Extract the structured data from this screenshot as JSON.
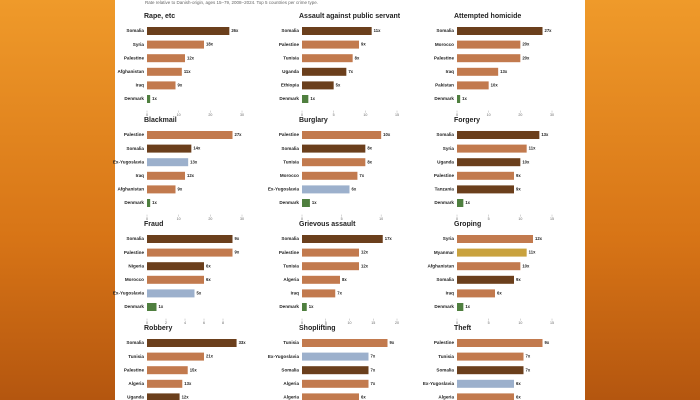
{
  "header": {
    "subtitle": "Rate relative to Danish-origin, ages 15–79, 2008–2024. Top 5 countries per crime type."
  },
  "chart_data": [
    {
      "type": "bar",
      "title": "Rape, etc",
      "categories": [
        "Somalia",
        "Syria",
        "Palestine",
        "Afghanistan",
        "Iraq",
        "Denmark"
      ],
      "values": [
        26,
        18,
        12,
        11,
        9,
        1
      ],
      "value_labels": [
        "26x",
        "18x",
        "12x",
        "11x",
        "9x",
        "1x"
      ],
      "colors": [
        "#6b3f1c",
        "#c27a4e",
        "#c27a4e",
        "#c27a4e",
        "#c27a4e",
        "#4f7f3f"
      ],
      "xlim": [
        0,
        30
      ],
      "xticks": [
        0,
        10,
        20,
        30
      ]
    },
    {
      "type": "bar",
      "title": "Assault against public servant",
      "categories": [
        "Somalia",
        "Palestine",
        "Tunisia",
        "Uganda",
        "Ethiopia",
        "Denmark"
      ],
      "values": [
        11,
        9,
        8,
        7,
        5,
        1
      ],
      "value_labels": [
        "11x",
        "9x",
        "8x",
        "7x",
        "5x",
        "1x"
      ],
      "colors": [
        "#6b3f1c",
        "#c27a4e",
        "#c27a4e",
        "#6b3f1c",
        "#6b3f1c",
        "#4f7f3f"
      ],
      "xlim": [
        0,
        15
      ],
      "xticks": [
        0,
        5,
        10,
        15
      ]
    },
    {
      "type": "bar",
      "title": "Attempted homicide",
      "categories": [
        "Somalia",
        "Morocco",
        "Palestine",
        "Iraq",
        "Pakistan",
        "Denmark"
      ],
      "values": [
        27,
        20,
        20,
        13,
        10,
        1
      ],
      "value_labels": [
        "27x",
        "20x",
        "20x",
        "13x",
        "10x",
        "1x"
      ],
      "colors": [
        "#6b3f1c",
        "#c27a4e",
        "#c27a4e",
        "#c27a4e",
        "#c27a4e",
        "#4f7f3f"
      ],
      "xlim": [
        0,
        30
      ],
      "xticks": [
        0,
        10,
        20,
        30
      ]
    },
    {
      "type": "bar",
      "title": "Blackmail",
      "categories": [
        "Palestine",
        "Somalia",
        "Ex-Yugoslavia",
        "Iraq",
        "Afghanistan",
        "Denmark"
      ],
      "values": [
        27,
        14,
        13,
        12,
        9,
        1
      ],
      "value_labels": [
        "27x",
        "14x",
        "13x",
        "12x",
        "9x",
        "1x"
      ],
      "colors": [
        "#c27a4e",
        "#6b3f1c",
        "#9cb0cc",
        "#c27a4e",
        "#c27a4e",
        "#4f7f3f"
      ],
      "xlim": [
        0,
        30
      ],
      "xticks": [
        0,
        10,
        20,
        30
      ]
    },
    {
      "type": "bar",
      "title": "Burglary",
      "categories": [
        "Palestine",
        "Somalia",
        "Tunisia",
        "Morocco",
        "Ex-Yugoslavia",
        "Denmark"
      ],
      "values": [
        10,
        8,
        8,
        7,
        6,
        1
      ],
      "value_labels": [
        "10x",
        "8x",
        "8x",
        "7x",
        "6x",
        "1x"
      ],
      "colors": [
        "#c27a4e",
        "#6b3f1c",
        "#c27a4e",
        "#c27a4e",
        "#9cb0cc",
        "#4f7f3f"
      ],
      "xlim": [
        0,
        12
      ],
      "xticks": [
        0,
        5,
        10
      ]
    },
    {
      "type": "bar",
      "title": "Forgery",
      "categories": [
        "Somalia",
        "Syria",
        "Uganda",
        "Palestine",
        "Tanzania",
        "Denmark"
      ],
      "values": [
        13,
        11,
        10,
        9,
        9,
        1
      ],
      "value_labels": [
        "13x",
        "11x",
        "10x",
        "9x",
        "9x",
        "1x"
      ],
      "colors": [
        "#6b3f1c",
        "#c27a4e",
        "#6b3f1c",
        "#c27a4e",
        "#6b3f1c",
        "#4f7f3f"
      ],
      "xlim": [
        0,
        15
      ],
      "xticks": [
        0,
        5,
        10,
        15
      ]
    },
    {
      "type": "bar",
      "title": "Fraud",
      "categories": [
        "Somalia",
        "Palestine",
        "Nigeria",
        "Morocco",
        "Ex-Yugoslavia",
        "Denmark"
      ],
      "values": [
        9,
        9,
        6,
        6,
        5,
        1
      ],
      "value_labels": [
        "9x",
        "9x",
        "6x",
        "6x",
        "5x",
        "1x"
      ],
      "colors": [
        "#6b3f1c",
        "#c27a4e",
        "#6b3f1c",
        "#c27a4e",
        "#9cb0cc",
        "#4f7f3f"
      ],
      "xlim": [
        0,
        10
      ],
      "xticks": [
        0,
        2,
        4,
        6,
        8
      ]
    },
    {
      "type": "bar",
      "title": "Grievous assault",
      "categories": [
        "Somalia",
        "Palestine",
        "Tunisia",
        "Algeria",
        "Iraq",
        "Denmark"
      ],
      "values": [
        17,
        12,
        12,
        8,
        7,
        1
      ],
      "value_labels": [
        "17x",
        "12x",
        "12x",
        "8x",
        "7x",
        "1x"
      ],
      "colors": [
        "#6b3f1c",
        "#c27a4e",
        "#c27a4e",
        "#c27a4e",
        "#c27a4e",
        "#4f7f3f"
      ],
      "xlim": [
        0,
        20
      ],
      "xticks": [
        0,
        5,
        10,
        15,
        20
      ]
    },
    {
      "type": "bar",
      "title": "Groping",
      "categories": [
        "Syria",
        "Myanmar",
        "Afghanistan",
        "Somalia",
        "Iraq",
        "Denmark"
      ],
      "values": [
        12,
        11,
        10,
        9,
        6,
        1
      ],
      "value_labels": [
        "12x",
        "11x",
        "10x",
        "9x",
        "6x",
        "1x"
      ],
      "colors": [
        "#c27a4e",
        "#c9a23e",
        "#c27a4e",
        "#6b3f1c",
        "#c27a4e",
        "#4f7f3f"
      ],
      "xlim": [
        0,
        15
      ],
      "xticks": [
        0,
        5,
        10,
        15
      ]
    },
    {
      "type": "bar",
      "title": "Robbery",
      "categories": [
        "Somalia",
        "Tunisia",
        "Palestine",
        "Algeria",
        "Uganda"
      ],
      "values": [
        33,
        21,
        15,
        13,
        12
      ],
      "value_labels": [
        "33x",
        "21x",
        "15x",
        "13x",
        "12x"
      ],
      "colors": [
        "#6b3f1c",
        "#c27a4e",
        "#c27a4e",
        "#c27a4e",
        "#6b3f1c"
      ],
      "xlim": [
        0,
        35
      ]
    },
    {
      "type": "bar",
      "title": "Shoplifting",
      "categories": [
        "Tunisia",
        "Ex-Yugoslavia",
        "Somalia",
        "Algeria",
        "Algeria"
      ],
      "values": [
        9,
        7,
        7,
        7,
        6
      ],
      "value_labels": [
        "9x",
        "7x",
        "7x",
        "7x",
        "6x"
      ],
      "colors": [
        "#c27a4e",
        "#9cb0cc",
        "#6b3f1c",
        "#c27a4e",
        "#c27a4e"
      ],
      "xlim": [
        0,
        10
      ]
    },
    {
      "type": "bar",
      "title": "Theft",
      "categories": [
        "Palestine",
        "Tunisia",
        "Somalia",
        "Ex-Yugoslavia",
        "Algeria"
      ],
      "values": [
        9,
        7,
        7,
        6,
        6
      ],
      "value_labels": [
        "9x",
        "7x",
        "7x",
        "6x",
        "6x"
      ],
      "colors": [
        "#c27a4e",
        "#c27a4e",
        "#6b3f1c",
        "#9cb0cc",
        "#c27a4e"
      ],
      "xlim": [
        0,
        10
      ]
    }
  ]
}
